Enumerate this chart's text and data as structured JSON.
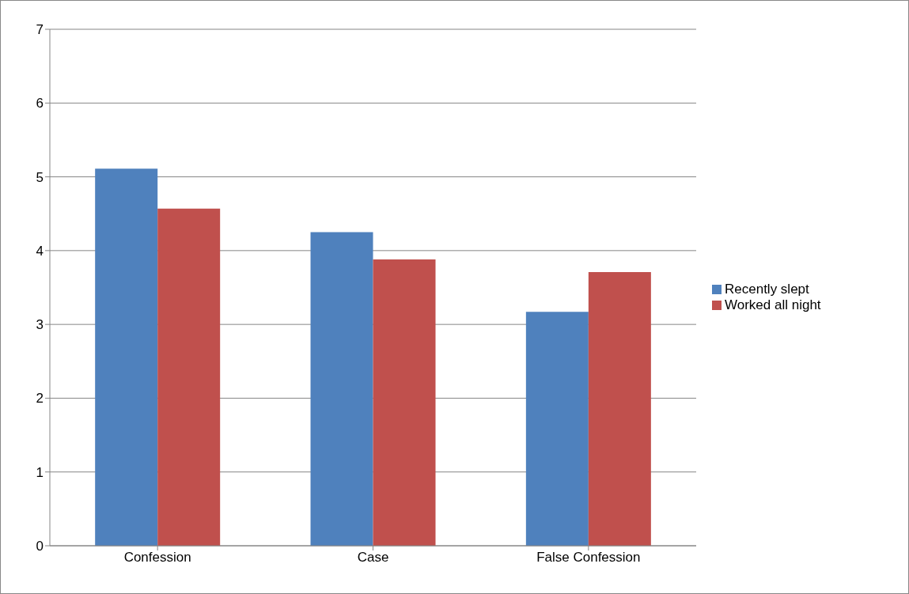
{
  "chart_data": {
    "type": "bar",
    "categories": [
      "Confession",
      "Case",
      "False Confession"
    ],
    "series": [
      {
        "name": "Recently slept",
        "color": "#4f81bd",
        "values": [
          5.11,
          4.25,
          3.17
        ]
      },
      {
        "name": "Worked all night",
        "color": "#c0504d",
        "values": [
          4.57,
          3.88,
          3.71
        ]
      }
    ],
    "ylim": [
      0,
      7
    ],
    "yticks": [
      0,
      1,
      2,
      3,
      4,
      5,
      6,
      7
    ],
    "grid": "y",
    "legend": "right"
  }
}
